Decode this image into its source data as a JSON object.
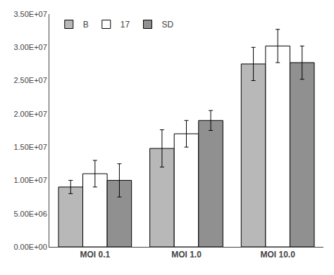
{
  "chart_data": {
    "type": "bar",
    "categories": [
      "MOI 0.1",
      "MOI 1.0",
      "MOI 10.0"
    ],
    "series": [
      {
        "name": "B",
        "color": "#b8b8b8",
        "values": [
          9000000.0,
          14800000.0,
          27500000.0
        ],
        "errors": [
          1000000.0,
          2800000.0,
          2500000.0
        ]
      },
      {
        "name": "17",
        "color": "#ffffff",
        "values": [
          11000000.0,
          17000000.0,
          30200000.0
        ],
        "errors": [
          2000000.0,
          2000000.0,
          2500000.0
        ]
      },
      {
        "name": "SD",
        "color": "#909090",
        "values": [
          10000000.0,
          19000000.0,
          27700000.0
        ],
        "errors": [
          2500000.0,
          1500000.0,
          2500000.0
        ]
      }
    ],
    "ylim": [
      0,
      35000000.0
    ],
    "yticks": [
      {
        "value": 0,
        "label": "0.00E+00"
      },
      {
        "value": 5000000.0,
        "label": "5.00E+06"
      },
      {
        "value": 10000000.0,
        "label": "1.00E+07"
      },
      {
        "value": 15000000.0,
        "label": "1.50E+07"
      },
      {
        "value": 20000000.0,
        "label": "2.00E+07"
      },
      {
        "value": 25000000.0,
        "label": "2.50E+07"
      },
      {
        "value": 30000000.0,
        "label": "3.00E+07"
      },
      {
        "value": 35000000.0,
        "label": "3.50E+07"
      }
    ],
    "grid": false,
    "legend": "upper left"
  }
}
